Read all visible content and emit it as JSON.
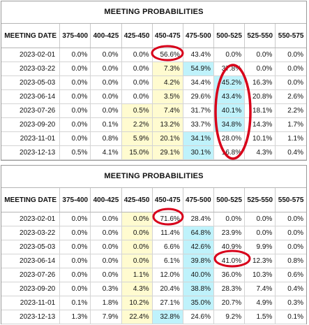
{
  "colors": {
    "lower_band": "#fffbd0",
    "highlight_band": "#bff2fb",
    "annotation": "#d8001a"
  },
  "panels": [
    {
      "title": "MEETING PROBABILITIES",
      "headers": [
        "MEETING DATE",
        "375-400",
        "400-425",
        "425-450",
        "450-475",
        "475-500",
        "500-525",
        "525-550",
        "550-575"
      ],
      "rows": [
        {
          "date": "2023-02-01",
          "values": [
            "0.0%",
            "0.0%",
            "0.0%",
            "56.6%",
            "43.4%",
            "0.0%",
            "0.0%",
            "0.0%"
          ],
          "yellow": [],
          "cyan": []
        },
        {
          "date": "2023-03-22",
          "values": [
            "0.0%",
            "0.0%",
            "0.0%",
            "7.3%",
            "54.9%",
            "37.8%",
            "0.0%",
            "0.0%"
          ],
          "yellow": [
            3
          ],
          "cyan": [
            4
          ]
        },
        {
          "date": "2023-05-03",
          "values": [
            "0.0%",
            "0.0%",
            "0.0%",
            "4.2%",
            "34.4%",
            "45.2%",
            "16.3%",
            "0.0%"
          ],
          "yellow": [
            3
          ],
          "cyan": [
            5
          ]
        },
        {
          "date": "2023-06-14",
          "values": [
            "0.0%",
            "0.0%",
            "0.0%",
            "3.5%",
            "29.6%",
            "43.4%",
            "20.8%",
            "2.6%"
          ],
          "yellow": [
            3
          ],
          "cyan": [
            5
          ]
        },
        {
          "date": "2023-07-26",
          "values": [
            "0.0%",
            "0.0%",
            "0.5%",
            "7.4%",
            "31.7%",
            "40.1%",
            "18.1%",
            "2.2%"
          ],
          "yellow": [
            2,
            3
          ],
          "cyan": [
            5
          ]
        },
        {
          "date": "2023-09-20",
          "values": [
            "0.0%",
            "0.1%",
            "2.2%",
            "13.2%",
            "33.7%",
            "34.8%",
            "14.3%",
            "1.7%"
          ],
          "yellow": [
            2,
            3
          ],
          "cyan": [
            5
          ]
        },
        {
          "date": "2023-11-01",
          "values": [
            "0.0%",
            "0.8%",
            "5.9%",
            "20.1%",
            "34.1%",
            "28.0%",
            "10.1%",
            "1.1%"
          ],
          "yellow": [
            2,
            3
          ],
          "cyan": [
            4
          ]
        },
        {
          "date": "2023-12-13",
          "values": [
            "0.5%",
            "4.1%",
            "15.0%",
            "29.1%",
            "30.1%",
            "16.8%",
            "4.3%",
            "0.4%"
          ],
          "yellow": [
            2,
            3
          ],
          "cyan": [
            4
          ]
        }
      ]
    },
    {
      "title": "MEETING PROBABILITIES",
      "headers": [
        "MEETING DATE",
        "375-400",
        "400-425",
        "425-450",
        "450-475",
        "475-500",
        "500-525",
        "525-550",
        "550-575"
      ],
      "rows": [
        {
          "date": "2023-02-01",
          "values": [
            "0.0%",
            "0.0%",
            "0.0%",
            "71.6%",
            "28.4%",
            "0.0%",
            "0.0%",
            "0.0%"
          ],
          "yellow": [
            2
          ],
          "cyan": []
        },
        {
          "date": "2023-03-22",
          "values": [
            "0.0%",
            "0.0%",
            "0.0%",
            "11.4%",
            "64.8%",
            "23.9%",
            "0.0%",
            "0.0%"
          ],
          "yellow": [
            2
          ],
          "cyan": [
            4
          ]
        },
        {
          "date": "2023-05-03",
          "values": [
            "0.0%",
            "0.0%",
            "0.0%",
            "6.6%",
            "42.6%",
            "40.9%",
            "9.9%",
            "0.0%"
          ],
          "yellow": [
            2
          ],
          "cyan": [
            4
          ]
        },
        {
          "date": "2023-06-14",
          "values": [
            "0.0%",
            "0.0%",
            "0.0%",
            "6.1%",
            "39.8%",
            "41.0%",
            "12.3%",
            "0.8%"
          ],
          "yellow": [
            2
          ],
          "cyan": [
            4
          ]
        },
        {
          "date": "2023-07-26",
          "values": [
            "0.0%",
            "0.0%",
            "1.1%",
            "12.0%",
            "40.0%",
            "36.0%",
            "10.3%",
            "0.6%"
          ],
          "yellow": [
            2
          ],
          "cyan": [
            4
          ]
        },
        {
          "date": "2023-09-20",
          "values": [
            "0.0%",
            "0.3%",
            "4.3%",
            "20.4%",
            "38.8%",
            "28.3%",
            "7.4%",
            "0.4%"
          ],
          "yellow": [
            2
          ],
          "cyan": [
            4
          ]
        },
        {
          "date": "2023-11-01",
          "values": [
            "0.1%",
            "1.8%",
            "10.2%",
            "27.1%",
            "35.0%",
            "20.7%",
            "4.9%",
            "0.3%"
          ],
          "yellow": [
            2
          ],
          "cyan": [
            4
          ]
        },
        {
          "date": "2023-12-13",
          "values": [
            "1.3%",
            "7.9%",
            "22.4%",
            "32.8%",
            "24.6%",
            "9.2%",
            "1.5%",
            "0.1%"
          ],
          "yellow": [
            2
          ],
          "cyan": [
            3
          ]
        }
      ]
    }
  ]
}
